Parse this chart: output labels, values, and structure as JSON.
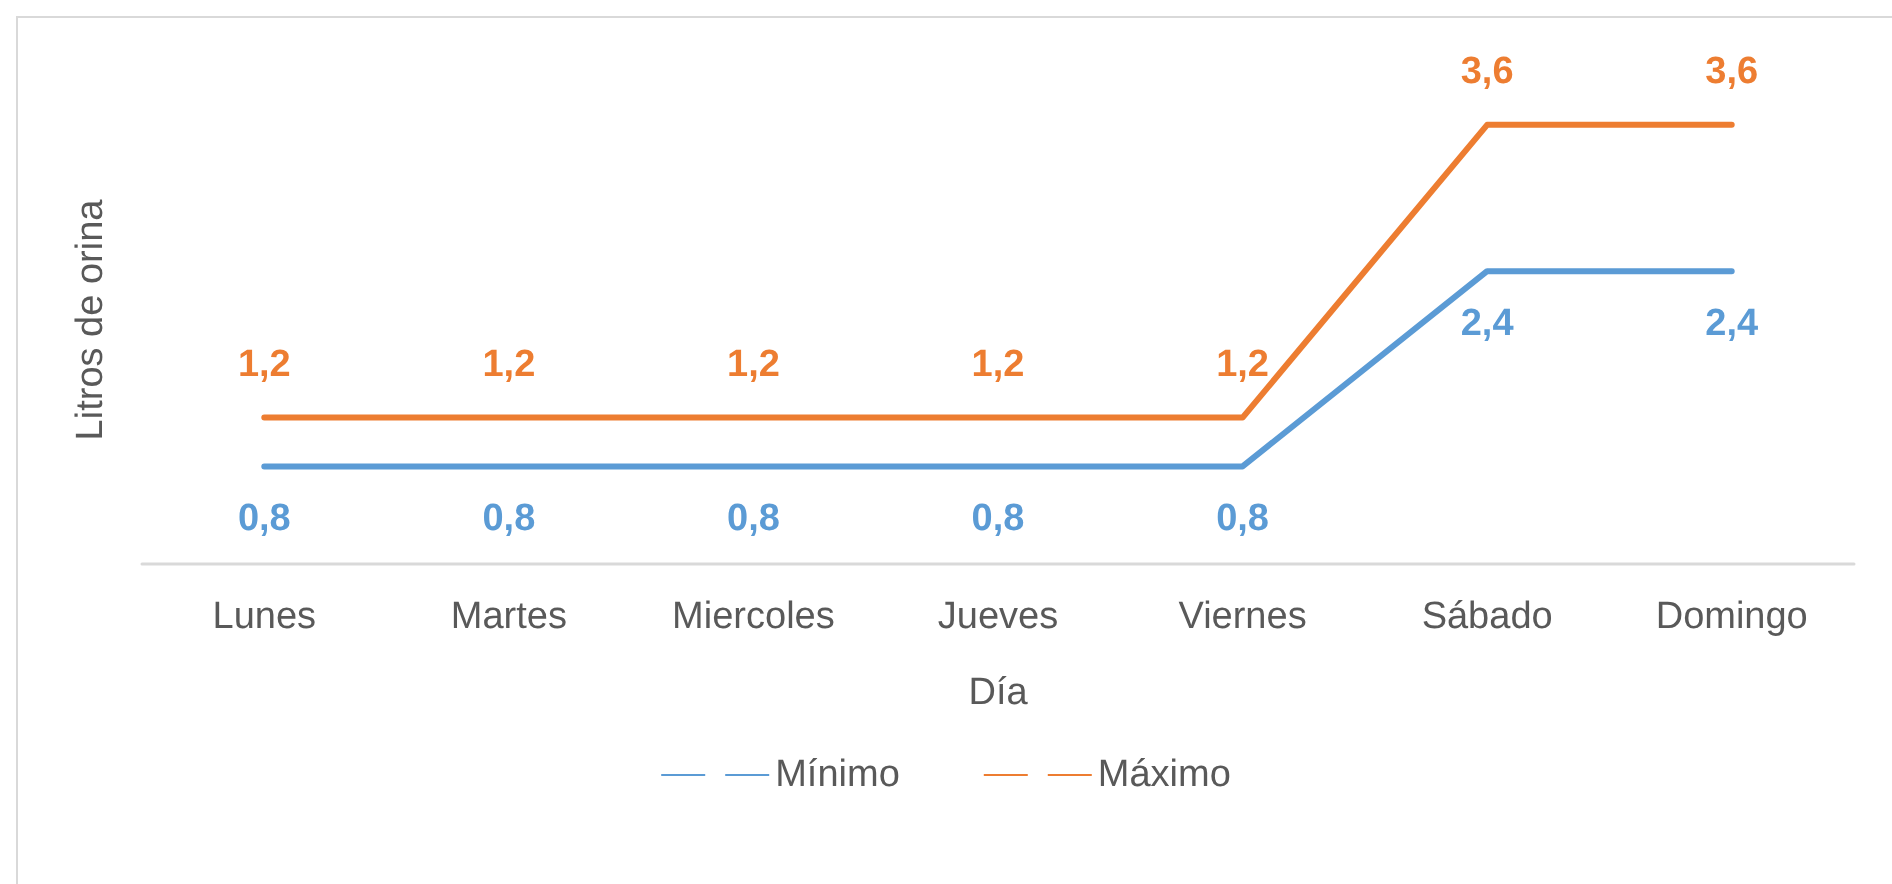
{
  "chart_data": {
    "type": "line",
    "xlabel": "Día",
    "ylabel": "Litros de orina",
    "categories": [
      "Lunes",
      "Martes",
      "Miercoles",
      "Jueves",
      "Viernes",
      "Sábado",
      "Domingo"
    ],
    "series": [
      {
        "name": "Mínimo",
        "color": "#5b9bd5",
        "values": [
          0.8,
          0.8,
          0.8,
          0.8,
          0.8,
          2.4,
          2.4
        ],
        "value_labels": [
          "0,8",
          "0,8",
          "0,8",
          "0,8",
          "0,8",
          "2,4",
          "2,4"
        ]
      },
      {
        "name": "Máximo",
        "color": "#ed7d31",
        "values": [
          1.2,
          1.2,
          1.2,
          1.2,
          1.2,
          3.6,
          3.6
        ],
        "value_labels": [
          "1,2",
          "1,2",
          "1,2",
          "1,2",
          "1,2",
          "3,6",
          "3,6"
        ]
      }
    ],
    "legend": "bottom",
    "grid": false,
    "tick_labels": "x",
    "marker": "none",
    "line_style": "solid"
  }
}
